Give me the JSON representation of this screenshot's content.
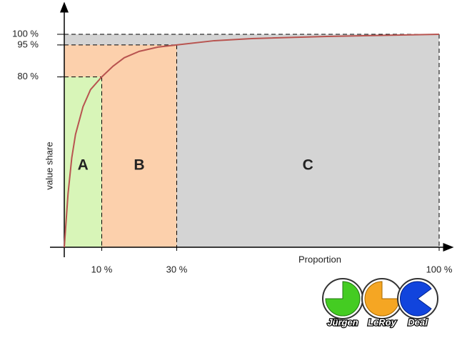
{
  "chart_data": {
    "type": "line",
    "x_label": "Proportion",
    "y_label": "value share",
    "x": [
      0,
      1,
      2,
      3,
      5,
      7,
      10,
      13,
      16,
      20,
      25,
      30,
      40,
      50,
      70,
      100
    ],
    "series": [
      {
        "color": "#b85450",
        "values": [
          0,
          25,
          42,
          53,
          66,
          74,
          80,
          85,
          89,
          92,
          94,
          95,
          97,
          98,
          99,
          100
        ]
      }
    ],
    "classes": [
      {
        "name": "A",
        "x_end": 10,
        "y_end": 80,
        "color": "#d8f5b8"
      },
      {
        "name": "B",
        "x_end": 30,
        "y_end": 95,
        "color": "#fcd0ac"
      },
      {
        "name": "C",
        "x_end": 100,
        "y_end": 100,
        "color": "#d4d4d4"
      }
    ],
    "xlim": [
      0,
      100
    ],
    "ylim": [
      0,
      100
    ],
    "xticks": [
      {
        "value": 10,
        "label": "10 %"
      },
      {
        "value": 30,
        "label": "30 %"
      },
      {
        "value": 100,
        "label": "100 %"
      }
    ],
    "yticks": [
      {
        "value": 80,
        "label": "80 %"
      },
      {
        "value": 95,
        "label": "95 %"
      },
      {
        "value": 100,
        "label": "100 %"
      }
    ],
    "logo": [
      "Jürgen",
      "LeRoy",
      "Deal"
    ]
  }
}
